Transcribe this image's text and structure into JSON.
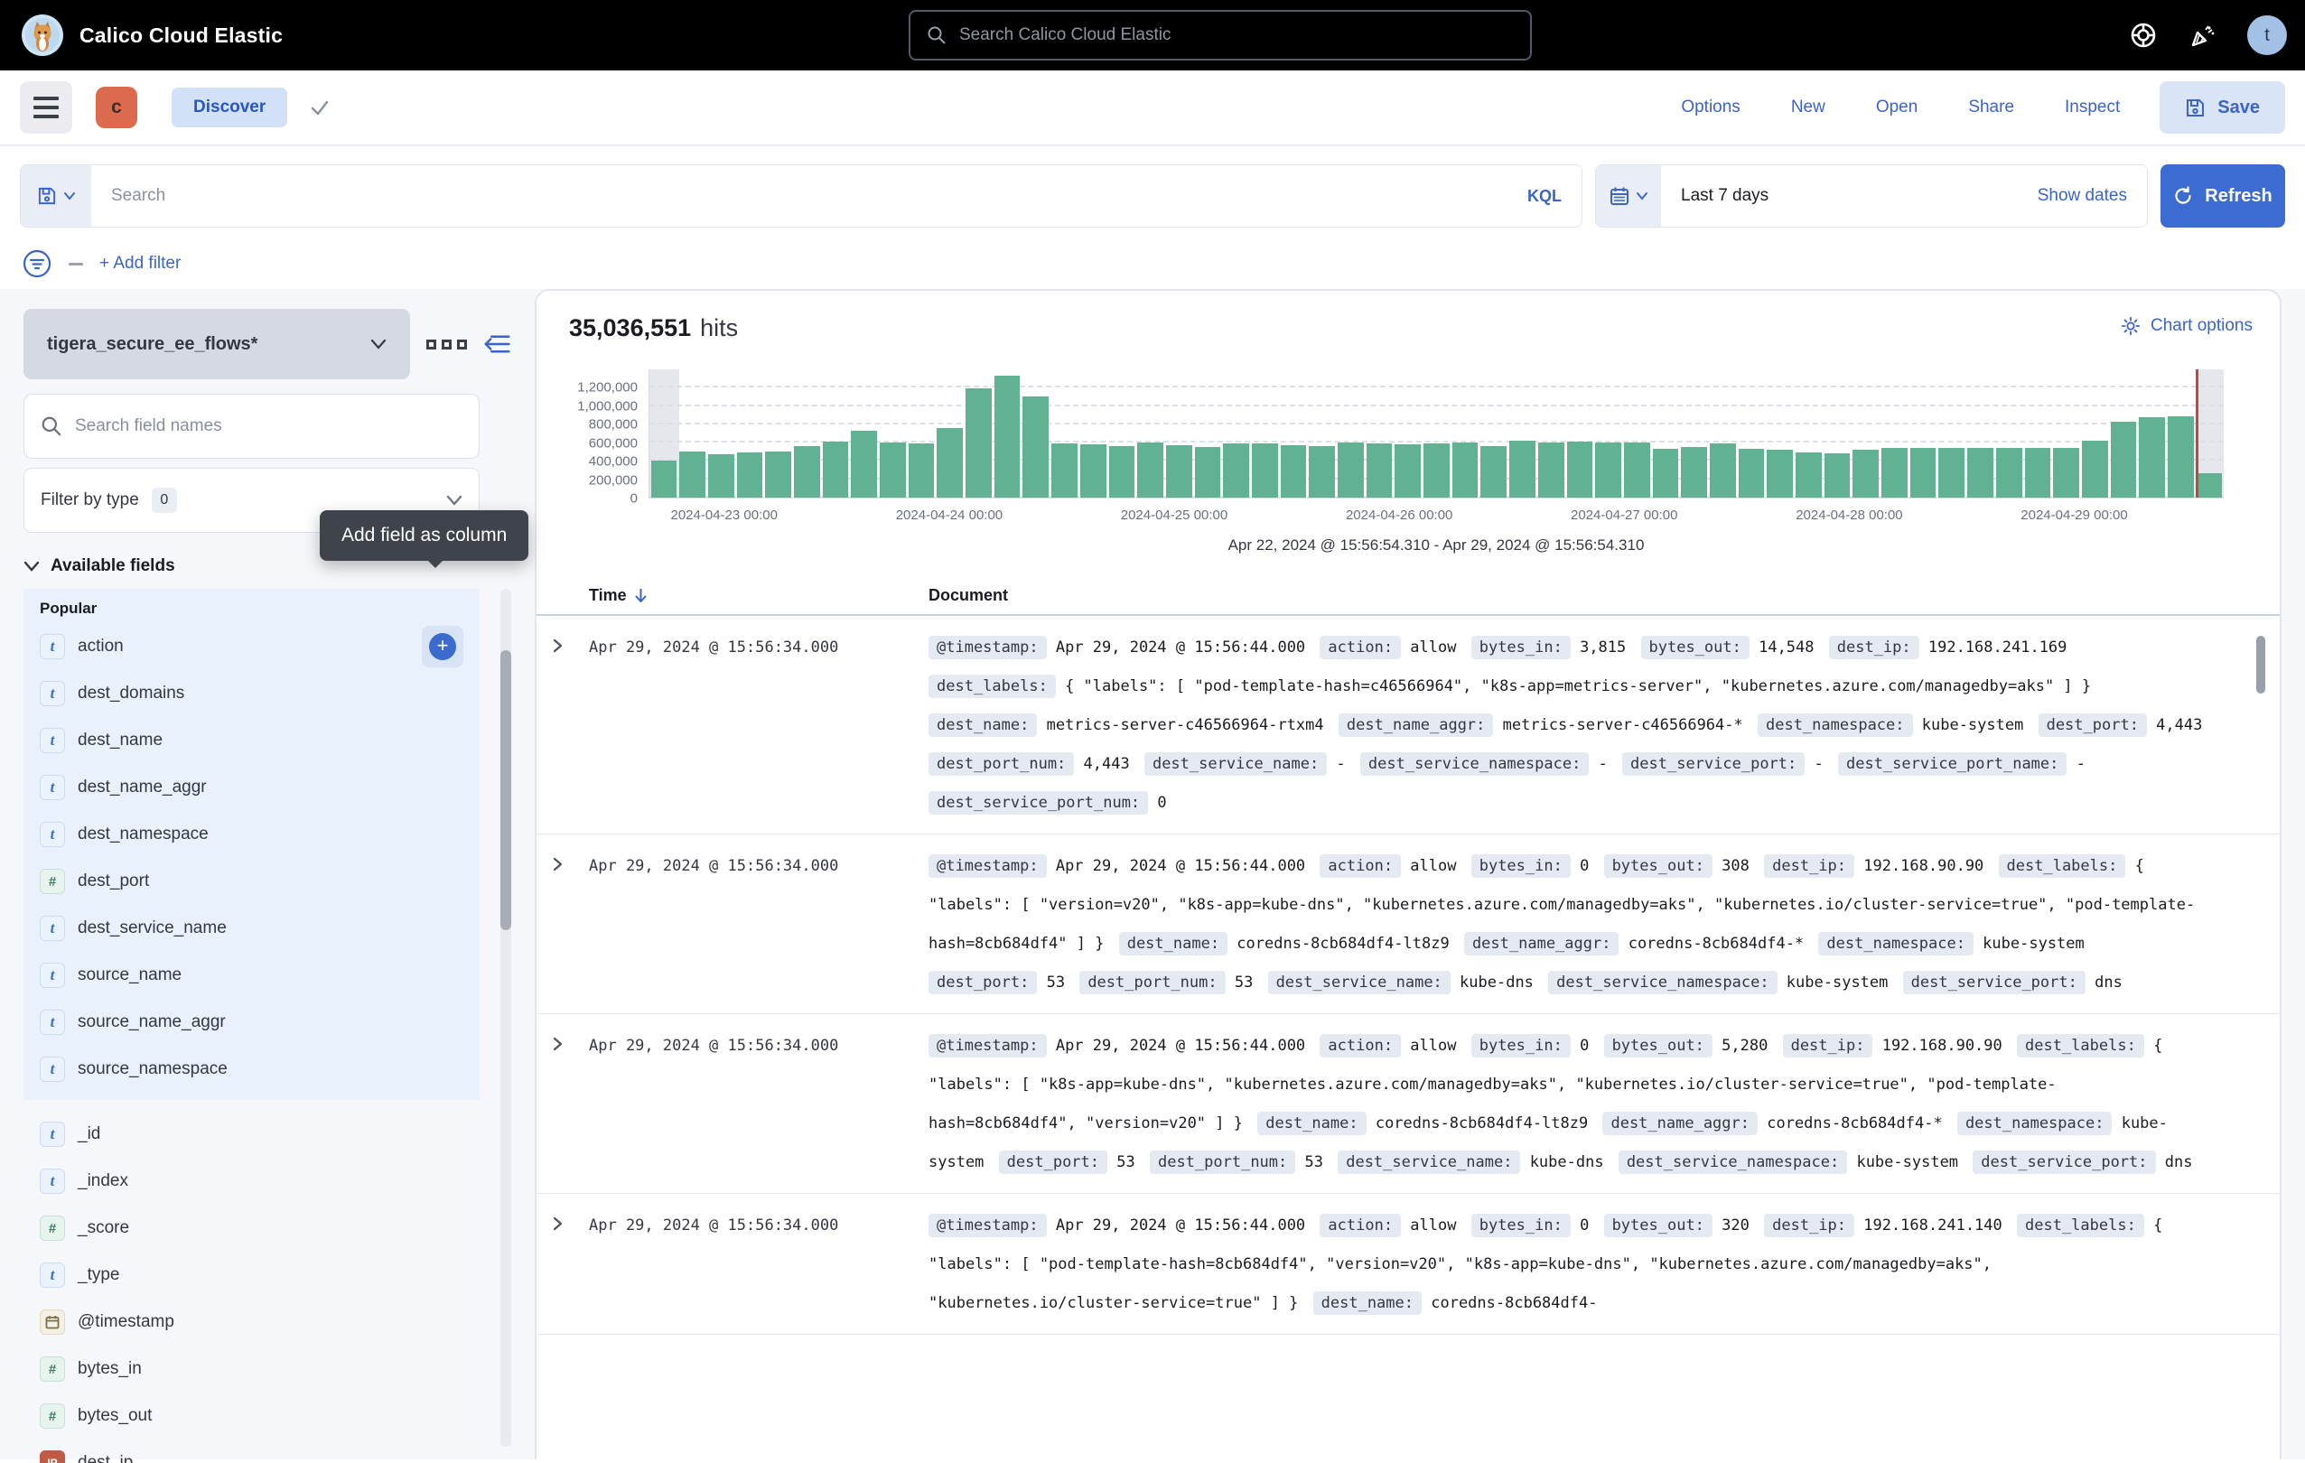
{
  "header": {
    "app_title": "Calico Cloud Elastic",
    "search_placeholder": "Search Calico Cloud Elastic",
    "avatar_letter": "t"
  },
  "toolbar": {
    "space_badge": "c",
    "breadcrumb": "Discover",
    "menu_links": [
      "Options",
      "New",
      "Open",
      "Share",
      "Inspect"
    ],
    "save_label": "Save"
  },
  "querybar": {
    "search_placeholder": "Search",
    "kql_label": "KQL",
    "time_range": "Last 7 days",
    "show_dates_label": "Show dates",
    "refresh_label": "Refresh",
    "add_filter_label": "+ Add filter"
  },
  "sidebar": {
    "index_pattern": "tigera_secure_ee_flows*",
    "field_search_placeholder": "Search field names",
    "filter_by_type_label": "Filter by type",
    "filter_count": "0",
    "available_fields_label": "Available fields",
    "popular_label": "Popular",
    "tooltip": "Add field as column",
    "popular_fields": [
      {
        "type": "t",
        "name": "action"
      },
      {
        "type": "t",
        "name": "dest_domains"
      },
      {
        "type": "t",
        "name": "dest_name"
      },
      {
        "type": "t",
        "name": "dest_name_aggr"
      },
      {
        "type": "t",
        "name": "dest_namespace"
      },
      {
        "type": "n",
        "name": "dest_port"
      },
      {
        "type": "t",
        "name": "dest_service_name"
      },
      {
        "type": "t",
        "name": "source_name"
      },
      {
        "type": "t",
        "name": "source_name_aggr"
      },
      {
        "type": "t",
        "name": "source_namespace"
      }
    ],
    "fields": [
      {
        "type": "t",
        "name": "_id"
      },
      {
        "type": "t",
        "name": "_index"
      },
      {
        "type": "n",
        "name": "_score"
      },
      {
        "type": "t",
        "name": "_type"
      },
      {
        "type": "d",
        "name": "@timestamp"
      },
      {
        "type": "n",
        "name": "bytes_in"
      },
      {
        "type": "n",
        "name": "bytes_out"
      },
      {
        "type": "ip",
        "name": "dest_ip"
      }
    ]
  },
  "results": {
    "hits_value": "35,036,551",
    "hits_label": "hits",
    "chart_options_label": "Chart options"
  },
  "chart_data": {
    "type": "bar",
    "title": "",
    "xlabel": "",
    "ylabel": "",
    "ylim": [
      0,
      1400000
    ],
    "yticks": [
      0,
      200000,
      400000,
      600000,
      800000,
      1000000,
      1200000
    ],
    "ytick_labels": [
      "0",
      "200,000",
      "400,000",
      "600,000",
      "800,000",
      "1,000,000",
      "1,200,000"
    ],
    "xtick_labels": [
      "2024-04-23 00:00",
      "2024-04-24 00:00",
      "2024-04-25 00:00",
      "2024-04-26 00:00",
      "2024-04-27 00:00",
      "2024-04-28 00:00",
      "2024-04-29 00:00"
    ],
    "xtick_pct": [
      4.8,
      19.09,
      33.37,
      47.66,
      61.94,
      76.23,
      90.51
    ],
    "values": [
      400000,
      500000,
      470000,
      490000,
      505000,
      560000,
      615000,
      730000,
      600000,
      590000,
      760000,
      1190000,
      1330000,
      1100000,
      590000,
      580000,
      565000,
      600000,
      575000,
      555000,
      590000,
      590000,
      575000,
      565000,
      600000,
      595000,
      585000,
      590000,
      600000,
      565000,
      625000,
      600000,
      615000,
      600000,
      605000,
      530000,
      550000,
      595000,
      530000,
      520000,
      490000,
      485000,
      520000,
      540000,
      540000,
      540000,
      540000,
      540000,
      545000,
      545000,
      620000,
      830000,
      880000,
      890000,
      270000
    ],
    "bar_color": "#61B292",
    "marker_pct": 98.2,
    "marker_color": "#C8453C",
    "partial_bucket": {
      "left_pct": 1.9,
      "right_pct": 1.8
    },
    "grid": true,
    "time_range_caption": "Apr 22, 2024 @ 15:56:54.310 - Apr 29, 2024 @ 15:56:54.310"
  },
  "table": {
    "time_header": "Time",
    "document_header": "Document",
    "rows": [
      {
        "time": "Apr 29, 2024 @ 15:56:34.000",
        "fields": [
          {
            "k": "@timestamp",
            "v": "Apr 29, 2024 @ 15:56:44.000"
          },
          {
            "k": "action",
            "v": "allow"
          },
          {
            "k": "bytes_in",
            "v": "3,815"
          },
          {
            "k": "bytes_out",
            "v": "14,548"
          },
          {
            "k": "dest_ip",
            "v": "192.168.241.169"
          },
          {
            "k": "dest_labels",
            "v": "{ \"labels\": [ \"pod-template-hash=c46566964\", \"k8s-app=metrics-server\", \"kubernetes.azure.com/managedby=aks\" ] }"
          },
          {
            "k": "dest_name",
            "v": "metrics-server-c46566964-rtxm4"
          },
          {
            "k": "dest_name_aggr",
            "v": "metrics-server-c46566964-*"
          },
          {
            "k": "dest_namespace",
            "v": "kube-system"
          },
          {
            "k": "dest_port",
            "v": "4,443"
          },
          {
            "k": "dest_port_num",
            "v": "4,443"
          },
          {
            "k": "dest_service_name",
            "v": "-"
          },
          {
            "k": "dest_service_namespace",
            "v": "-"
          },
          {
            "k": "dest_service_port",
            "v": "-"
          },
          {
            "k": "dest_service_port_name",
            "v": "-"
          },
          {
            "k": "dest_service_port_num",
            "v": "0"
          }
        ]
      },
      {
        "time": "Apr 29, 2024 @ 15:56:34.000",
        "fields": [
          {
            "k": "@timestamp",
            "v": "Apr 29, 2024 @ 15:56:44.000"
          },
          {
            "k": "action",
            "v": "allow"
          },
          {
            "k": "bytes_in",
            "v": "0"
          },
          {
            "k": "bytes_out",
            "v": "308"
          },
          {
            "k": "dest_ip",
            "v": "192.168.90.90"
          },
          {
            "k": "dest_labels",
            "v": "{ \"labels\": [ \"version=v20\", \"k8s-app=kube-dns\", \"kubernetes.azure.com/managedby=aks\", \"kubernetes.io/cluster-service=true\", \"pod-template-hash=8cb684df4\" ] }"
          },
          {
            "k": "dest_name",
            "v": "coredns-8cb684df4-lt8z9"
          },
          {
            "k": "dest_name_aggr",
            "v": "coredns-8cb684df4-*"
          },
          {
            "k": "dest_namespace",
            "v": "kube-system"
          },
          {
            "k": "dest_port",
            "v": "53"
          },
          {
            "k": "dest_port_num",
            "v": "53"
          },
          {
            "k": "dest_service_name",
            "v": "kube-dns"
          },
          {
            "k": "dest_service_namespace",
            "v": "kube-system"
          },
          {
            "k": "dest_service_port",
            "v": "dns"
          }
        ]
      },
      {
        "time": "Apr 29, 2024 @ 15:56:34.000",
        "fields": [
          {
            "k": "@timestamp",
            "v": "Apr 29, 2024 @ 15:56:44.000"
          },
          {
            "k": "action",
            "v": "allow"
          },
          {
            "k": "bytes_in",
            "v": "0"
          },
          {
            "k": "bytes_out",
            "v": "5,280"
          },
          {
            "k": "dest_ip",
            "v": "192.168.90.90"
          },
          {
            "k": "dest_labels",
            "v": "{ \"labels\": [ \"k8s-app=kube-dns\", \"kubernetes.azure.com/managedby=aks\", \"kubernetes.io/cluster-service=true\", \"pod-template-hash=8cb684df4\", \"version=v20\" ] }"
          },
          {
            "k": "dest_name",
            "v": "coredns-8cb684df4-lt8z9"
          },
          {
            "k": "dest_name_aggr",
            "v": "coredns-8cb684df4-*"
          },
          {
            "k": "dest_namespace",
            "v": "kube-system"
          },
          {
            "k": "dest_port",
            "v": "53"
          },
          {
            "k": "dest_port_num",
            "v": "53"
          },
          {
            "k": "dest_service_name",
            "v": "kube-dns"
          },
          {
            "k": "dest_service_namespace",
            "v": "kube-system"
          },
          {
            "k": "dest_service_port",
            "v": "dns"
          }
        ]
      },
      {
        "time": "Apr 29, 2024 @ 15:56:34.000",
        "fields": [
          {
            "k": "@timestamp",
            "v": "Apr 29, 2024 @ 15:56:44.000"
          },
          {
            "k": "action",
            "v": "allow"
          },
          {
            "k": "bytes_in",
            "v": "0"
          },
          {
            "k": "bytes_out",
            "v": "320"
          },
          {
            "k": "dest_ip",
            "v": "192.168.241.140"
          },
          {
            "k": "dest_labels",
            "v": "{ \"labels\": [ \"pod-template-hash=8cb684df4\", \"version=v20\", \"k8s-app=kube-dns\", \"kubernetes.azure.com/managedby=aks\", \"kubernetes.io/cluster-service=true\" ] }"
          },
          {
            "k": "dest_name",
            "v": "coredns-8cb684df4-"
          }
        ]
      }
    ]
  },
  "colors": {
    "accent_blue": "#3B64C6",
    "refresh_blue": "#3C6BD1",
    "bar_green": "#61B292",
    "marker_red": "#C8453C",
    "popular_bg": "#E9F2FC",
    "badge_bg": "#E5EAF2",
    "space_badge_bg": "#DB6A4F",
    "tooltip_bg": "#3F434B"
  },
  "icons": {
    "logo": "cat-mascot",
    "global_search": "magnifier",
    "help": "life-ring",
    "news": "party-popper",
    "menu": "hamburger",
    "save": "floppy-disk",
    "date": "calendar",
    "refresh": "circular-arrow",
    "filter": "filter-in-circle",
    "chart_options": "gear",
    "sort": "arrow-down",
    "expand": "chevron-right"
  }
}
